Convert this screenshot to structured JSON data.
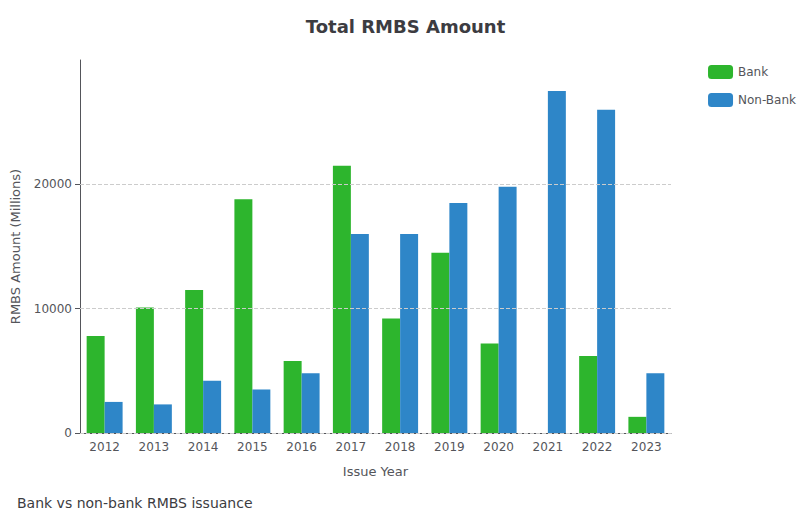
{
  "chart_data": {
    "type": "bar",
    "title": "Total RMBS Amount",
    "subtitle": "Bank vs non-bank RMBS issuance",
    "xlabel": "Issue Year",
    "ylabel": "RMBS Amount (Millions)",
    "categories": [
      "2012",
      "2013",
      "2014",
      "2015",
      "2016",
      "2017",
      "2018",
      "2019",
      "2020",
      "2021",
      "2022",
      "2023"
    ],
    "series": [
      {
        "name": "Bank",
        "color": "#2db52d",
        "values": [
          7800,
          10100,
          11500,
          18800,
          5800,
          21500,
          9200,
          14500,
          7200,
          0,
          6200,
          1300
        ]
      },
      {
        "name": "Non-Bank",
        "color": "#2e86c8",
        "values": [
          2500,
          2300,
          4200,
          3500,
          4800,
          16000,
          16000,
          18500,
          19800,
          27500,
          26000,
          4800
        ]
      }
    ],
    "ylim": [
      0,
      30000
    ],
    "yticks": [
      0,
      10000,
      20000
    ],
    "grid": true,
    "legend": "upper right"
  }
}
